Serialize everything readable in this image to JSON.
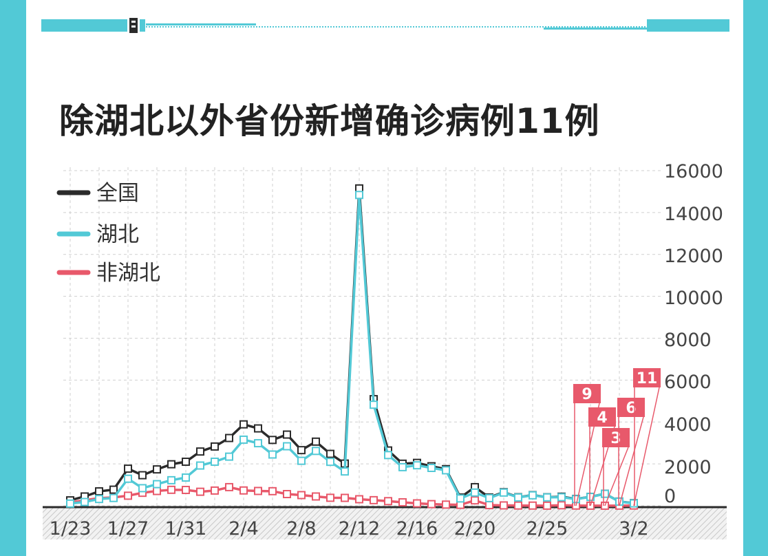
{
  "title": "除湖北以外省份新增确诊病例11例",
  "colors": {
    "frame": "#52c9d6",
    "national": "#2b2b2b",
    "hubei": "#52c9d6",
    "non_hubei": "#e8596b",
    "grid": "#cfcfcf",
    "axis_text": "#444444"
  },
  "legend": [
    {
      "label": "全国",
      "color": "#2b2b2b"
    },
    {
      "label": "湖北",
      "color": "#52c9d6"
    },
    {
      "label": "非湖北",
      "color": "#e8596b"
    }
  ],
  "chart_data": {
    "type": "line",
    "title": "除湖北以外省份新增确诊病例11例",
    "x": [
      "1/23",
      "1/24",
      "1/25",
      "1/26",
      "1/27",
      "1/28",
      "1/29",
      "1/30",
      "1/31",
      "2/1",
      "2/2",
      "2/3",
      "2/4",
      "2/5",
      "2/6",
      "2/7",
      "2/8",
      "2/9",
      "2/10",
      "2/11",
      "2/12",
      "2/13",
      "2/14",
      "2/15",
      "2/16",
      "2/17",
      "2/18",
      "2/19",
      "2/20",
      "2/21",
      "2/22",
      "2/23",
      "2/24",
      "2/25",
      "2/26",
      "2/27",
      "2/28",
      "2/29",
      "3/1",
      "3/2"
    ],
    "x_tick_labels": [
      "1/23",
      "1/27",
      "1/31",
      "2/4",
      "2/8",
      "2/12",
      "2/16",
      "2/20",
      "2/25",
      "3/2"
    ],
    "series": [
      {
        "name": "全国",
        "values": [
          259,
          444,
          688,
          769,
          1771,
          1459,
          1737,
          1982,
          2102,
          2590,
          2829,
          3235,
          3887,
          3694,
          3143,
          3399,
          2656,
          3062,
          2478,
          2015,
          15152,
          5090,
          2641,
          2009,
          2048,
          1886,
          1749,
          394,
          889,
          397,
          648,
          409,
          508,
          406,
          433,
          327,
          427,
          573,
          202,
          125
        ]
      },
      {
        "name": "湖北",
        "values": [
          105,
          180,
          323,
          371,
          1291,
          840,
          1032,
          1220,
          1347,
          1921,
          2103,
          2345,
          3156,
          2987,
          2447,
          2841,
          2147,
          2618,
          2097,
          1638,
          14840,
          4823,
          2420,
          1843,
          1933,
          1807,
          1693,
          349,
          631,
          366,
          630,
          398,
          499,
          401,
          409,
          318,
          423,
          570,
          196,
          114
        ]
      },
      {
        "name": "非湖北",
        "values": [
          154,
          264,
          365,
          398,
          480,
          619,
          705,
          762,
          755,
          669,
          726,
          890,
          731,
          707,
          696,
          558,
          509,
          444,
          381,
          377,
          312,
          267,
          221,
          166,
          115,
          79,
          56,
          45,
          258,
          31,
          18,
          11,
          9,
          5,
          24,
          9,
          4,
          3,
          6,
          11
        ]
      }
    ],
    "annotations": [
      {
        "x": "2/27",
        "value": "9"
      },
      {
        "x": "2/28",
        "value": "4"
      },
      {
        "x": "2/29",
        "value": "3"
      },
      {
        "x": "3/1",
        "value": "6"
      },
      {
        "x": "3/2",
        "value": "11"
      }
    ],
    "y_tick_labels": [
      "16000",
      "14000",
      "12000",
      "10000",
      "8000",
      "6000",
      "4000",
      "2000",
      "0"
    ],
    "ylim": [
      0,
      16000
    ],
    "grid": true,
    "y_axis_position": "right",
    "legend_position": "top-left"
  }
}
